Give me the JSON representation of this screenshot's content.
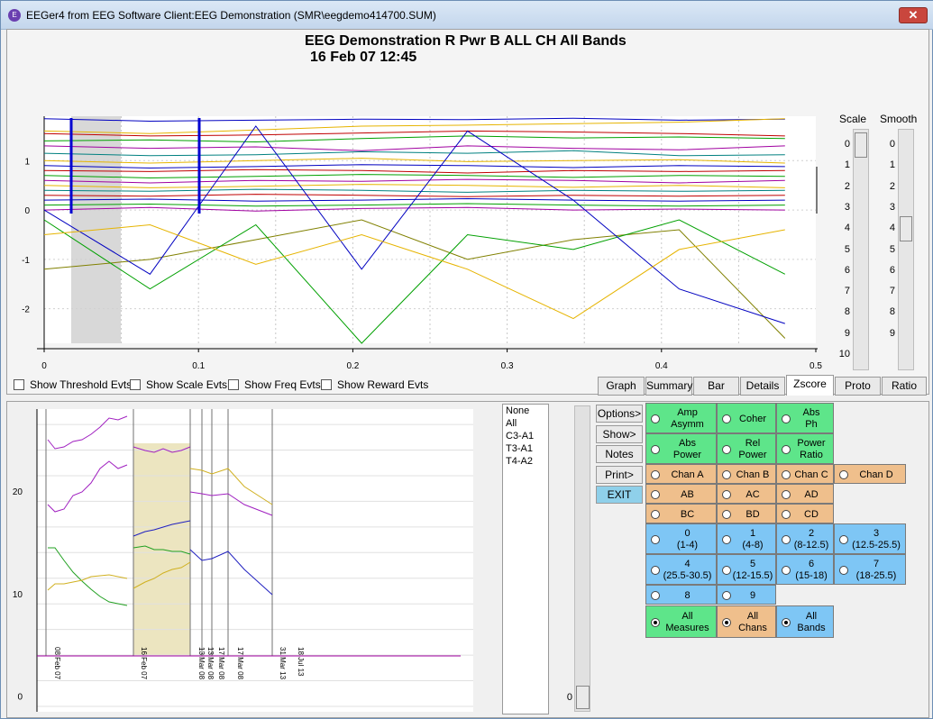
{
  "window": {
    "title": "EEGer4 from EEG Software  Client:EEG Demonstration  (SMR\\eegdemo414700.SUM)",
    "close_label": "✕",
    "icon_label": "E"
  },
  "chart": {
    "title": "EEG Demonstration R Pwr B ALL CH All Bands",
    "date": "16 Feb 07    12:45"
  },
  "chart_data": [
    {
      "type": "line",
      "title": "EEG Demonstration R Pwr B ALL CH All Bands",
      "xlim": [
        0,
        0.5
      ],
      "ylim": [
        -2.7,
        1.9
      ],
      "x_ticks": [
        "0",
        "0.1",
        "0.2",
        "0.3",
        "0.4",
        "0.5"
      ],
      "y_ticks": [
        "1",
        "0",
        "-1",
        "-2"
      ],
      "series": [
        {
          "color": "#0000c0",
          "values": [
            1.85,
            1.8,
            1.82,
            1.84,
            1.83,
            1.86,
            1.82,
            1.84
          ]
        },
        {
          "color": "#e6b400",
          "values": [
            1.6,
            1.55,
            1.62,
            1.7,
            1.72,
            1.75,
            1.78,
            1.85
          ]
        },
        {
          "color": "#c00000",
          "values": [
            1.55,
            1.5,
            1.52,
            1.56,
            1.6,
            1.58,
            1.55,
            1.5
          ]
        },
        {
          "color": "#00a000",
          "values": [
            1.4,
            1.42,
            1.38,
            1.45,
            1.5,
            1.46,
            1.48,
            1.45
          ]
        },
        {
          "color": "#a000a0",
          "values": [
            1.3,
            1.25,
            1.28,
            1.2,
            1.3,
            1.25,
            1.22,
            1.3
          ]
        },
        {
          "color": "#008080",
          "values": [
            1.15,
            1.1,
            1.12,
            1.18,
            1.15,
            1.2,
            1.1,
            1.12
          ]
        },
        {
          "color": "#e6b400",
          "values": [
            1.0,
            0.95,
            1.0,
            1.05,
            0.98,
            1.0,
            1.02,
            0.95
          ]
        },
        {
          "color": "#0000c0",
          "values": [
            0.9,
            0.85,
            0.88,
            0.92,
            0.9,
            0.86,
            0.9,
            0.88
          ]
        },
        {
          "color": "#c00000",
          "values": [
            0.8,
            0.78,
            0.82,
            0.8,
            0.75,
            0.8,
            0.78,
            0.8
          ]
        },
        {
          "color": "#00a000",
          "values": [
            0.7,
            0.65,
            0.68,
            0.72,
            0.7,
            0.66,
            0.7,
            0.68
          ]
        },
        {
          "color": "#a000a0",
          "values": [
            0.6,
            0.55,
            0.6,
            0.58,
            0.62,
            0.6,
            0.55,
            0.6
          ]
        },
        {
          "color": "#e6b400",
          "values": [
            0.5,
            0.45,
            0.48,
            0.52,
            0.5,
            0.46,
            0.5,
            0.45
          ]
        },
        {
          "color": "#008080",
          "values": [
            0.4,
            0.38,
            0.42,
            0.4,
            0.36,
            0.4,
            0.38,
            0.4
          ]
        },
        {
          "color": "#c00000",
          "values": [
            0.3,
            0.28,
            0.32,
            0.3,
            0.27,
            0.3,
            0.28,
            0.3
          ]
        },
        {
          "color": "#0000c0",
          "values": [
            0.2,
            0.22,
            0.18,
            0.2,
            0.23,
            0.2,
            0.18,
            0.2
          ]
        },
        {
          "color": "#00a000",
          "values": [
            0.1,
            0.12,
            0.08,
            0.1,
            0.13,
            0.1,
            0.08,
            0.1
          ]
        },
        {
          "color": "#a000a0",
          "values": [
            0.0,
            0.05,
            -0.02,
            0.03,
            0.05,
            0.0,
            0.02,
            0.0
          ]
        },
        {
          "color": "#808000",
          "values": [
            -1.2,
            -1.0,
            -0.6,
            -0.2,
            -1.0,
            -0.6,
            -0.4,
            -2.6
          ]
        },
        {
          "color": "#00a000",
          "values": [
            -0.2,
            -1.6,
            -0.3,
            -2.7,
            -0.5,
            -0.8,
            -0.2,
            -1.3
          ]
        },
        {
          "color": "#0000c0",
          "values": [
            0.0,
            -1.3,
            1.7,
            -1.2,
            1.6,
            0.2,
            -1.6,
            -2.3
          ]
        },
        {
          "color": "#e6b400",
          "values": [
            -0.5,
            -0.3,
            -1.1,
            -0.5,
            -1.2,
            -2.2,
            -0.8,
            -0.4
          ]
        }
      ]
    },
    {
      "type": "line",
      "ylim": [
        -1,
        28
      ],
      "y_ticks": [
        "20",
        "10",
        "0"
      ],
      "session_labels": [
        "08 Feb 07",
        "16 Feb 07",
        "13 Mar 08",
        "13 Mar 08",
        "17 Mar 08",
        "17 Mar 08",
        "31 Mar 13",
        "18 Jul 13"
      ]
    }
  ],
  "checkboxes": [
    {
      "label": "Show Threshold Evts"
    },
    {
      "label": "Show Scale Evts"
    },
    {
      "label": "Show Freq Evts"
    },
    {
      "label": "Show Reward Evts"
    }
  ],
  "tabs": [
    "Graph",
    "Summary",
    "Bar",
    "Details",
    "Zscore",
    "Proto",
    "Ratio"
  ],
  "scale": {
    "label": "Scale",
    "ticks": [
      "0",
      "1",
      "2",
      "3",
      "4",
      "5",
      "6",
      "7",
      "8",
      "9",
      "10"
    ],
    "value": 0
  },
  "smooth": {
    "label": "Smooth",
    "ticks": [
      "0",
      "1",
      "2",
      "3",
      "4",
      "5",
      "6",
      "7",
      "8",
      "9"
    ],
    "value": 4
  },
  "channels": [
    "None",
    "All",
    "C3-A1",
    "T3-A1",
    "T4-A2"
  ],
  "side_buttons": [
    "Options>",
    "Show>",
    "Notes",
    "Print>",
    "EXIT"
  ],
  "scroll_value": "0",
  "options": {
    "measures": [
      {
        "label": "Amp Asymm"
      },
      {
        "label": "Coher"
      },
      {
        "label": "Abs Ph"
      },
      {
        "label": "Abs Power"
      },
      {
        "label": "Rel Power"
      },
      {
        "label": "Power Ratio"
      }
    ],
    "chans": [
      {
        "label": "Chan A"
      },
      {
        "label": "Chan B"
      },
      {
        "label": "Chan C"
      },
      {
        "label": "Chan D"
      },
      {
        "label": "AB"
      },
      {
        "label": "AC"
      },
      {
        "label": "AD"
      },
      {
        "label": "BC"
      },
      {
        "label": "BD"
      },
      {
        "label": "CD"
      }
    ],
    "bands": [
      {
        "label": "0",
        "sub": "(1-4)"
      },
      {
        "label": "1",
        "sub": "(4-8)"
      },
      {
        "label": "2",
        "sub": "(8-12.5)"
      },
      {
        "label": "3",
        "sub": "(12.5-25.5)"
      },
      {
        "label": "4",
        "sub": "(25.5-30.5)"
      },
      {
        "label": "5",
        "sub": "(12-15.5)"
      },
      {
        "label": "6",
        "sub": "(15-18)"
      },
      {
        "label": "7",
        "sub": "(18-25.5)"
      },
      {
        "label": "8",
        "sub": ""
      },
      {
        "label": "9",
        "sub": ""
      }
    ],
    "all": [
      {
        "label": "All Measures"
      },
      {
        "label": "All Chans"
      },
      {
        "label": "All Bands"
      }
    ]
  }
}
